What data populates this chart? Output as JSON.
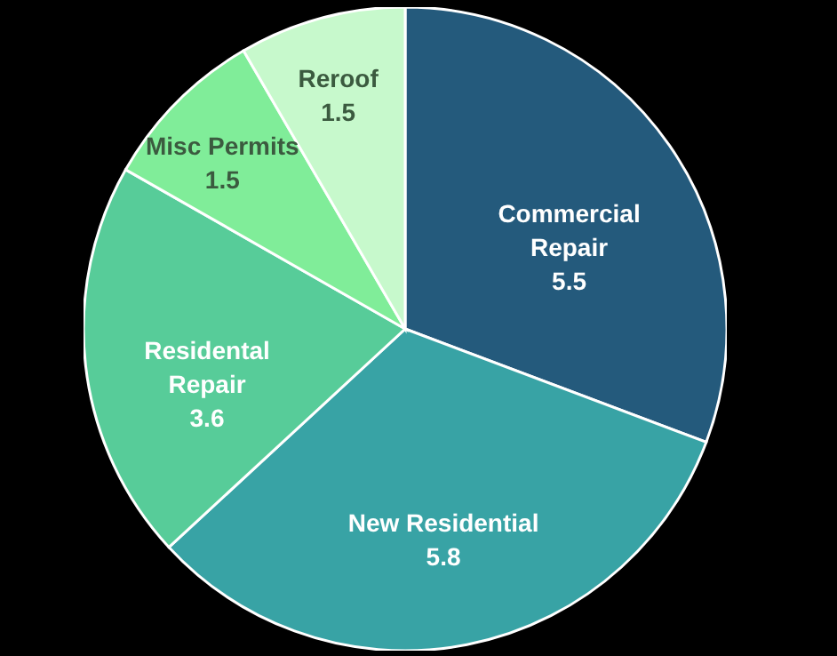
{
  "chart_data": {
    "type": "pie",
    "categories": [
      "Commercial Repair",
      "New Residential",
      "Residental Repair",
      "Misc Permits",
      "Reroof"
    ],
    "values": [
      5.5,
      5.8,
      3.6,
      1.5,
      1.5
    ],
    "colors": [
      "#245a7c",
      "#38a3a5",
      "#57cc99",
      "#80ed99",
      "#c7f9cc"
    ],
    "data_labels": true
  }
}
